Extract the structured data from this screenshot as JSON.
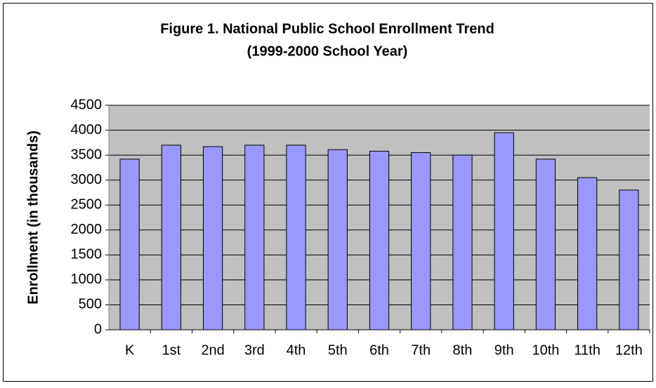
{
  "chart_data": {
    "type": "bar",
    "title": "Figure 1. National Public School Enrollment Trend",
    "subtitle": "(1999-2000 School Year)",
    "y_label": "Enrollment (in thousands)",
    "categories": [
      "K",
      "1st",
      "2nd",
      "3rd",
      "4th",
      "5th",
      "6th",
      "7th",
      "8th",
      "9th",
      "10th",
      "11th",
      "12th"
    ],
    "values": [
      3420,
      3700,
      3670,
      3700,
      3700,
      3610,
      3580,
      3550,
      3500,
      3950,
      3420,
      3050,
      2800
    ],
    "color": "#9999ff",
    "ylim": [
      0,
      4500
    ],
    "yticks": [
      0,
      500,
      1000,
      1500,
      2000,
      2500,
      3000,
      3500,
      4000,
      4500
    ],
    "grid": true
  }
}
